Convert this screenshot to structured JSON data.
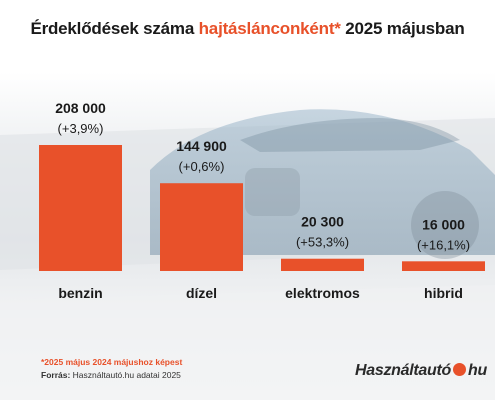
{
  "title": {
    "pre": "Érdeklődések száma ",
    "accent": "hajtáslánconként*",
    "post": " 2025 májusban"
  },
  "footnote": "*2025 május 2024 májushoz képest",
  "source": {
    "label": "Forrás:",
    "text": "Használtautó.hu adatai 2025"
  },
  "logo": {
    "left": "Használtautó",
    "right": "hu"
  },
  "colors": {
    "bar": "#e8512a",
    "accent": "#e8512a",
    "text": "#1a1a1a"
  },
  "chart_data": {
    "type": "bar",
    "categories": [
      "benzin",
      "dízel",
      "elektromos",
      "hibrid"
    ],
    "values": [
      208000,
      144900,
      20300,
      16000
    ],
    "value_labels": [
      "208 000",
      "144 900",
      "20 300",
      "16 000"
    ],
    "change_labels": [
      "(+3,9%)",
      "(+0,6%)",
      "(+53,3%)",
      "(+16,1%)"
    ],
    "ylim": [
      0,
      208000
    ],
    "grid": false,
    "legend": "none"
  }
}
